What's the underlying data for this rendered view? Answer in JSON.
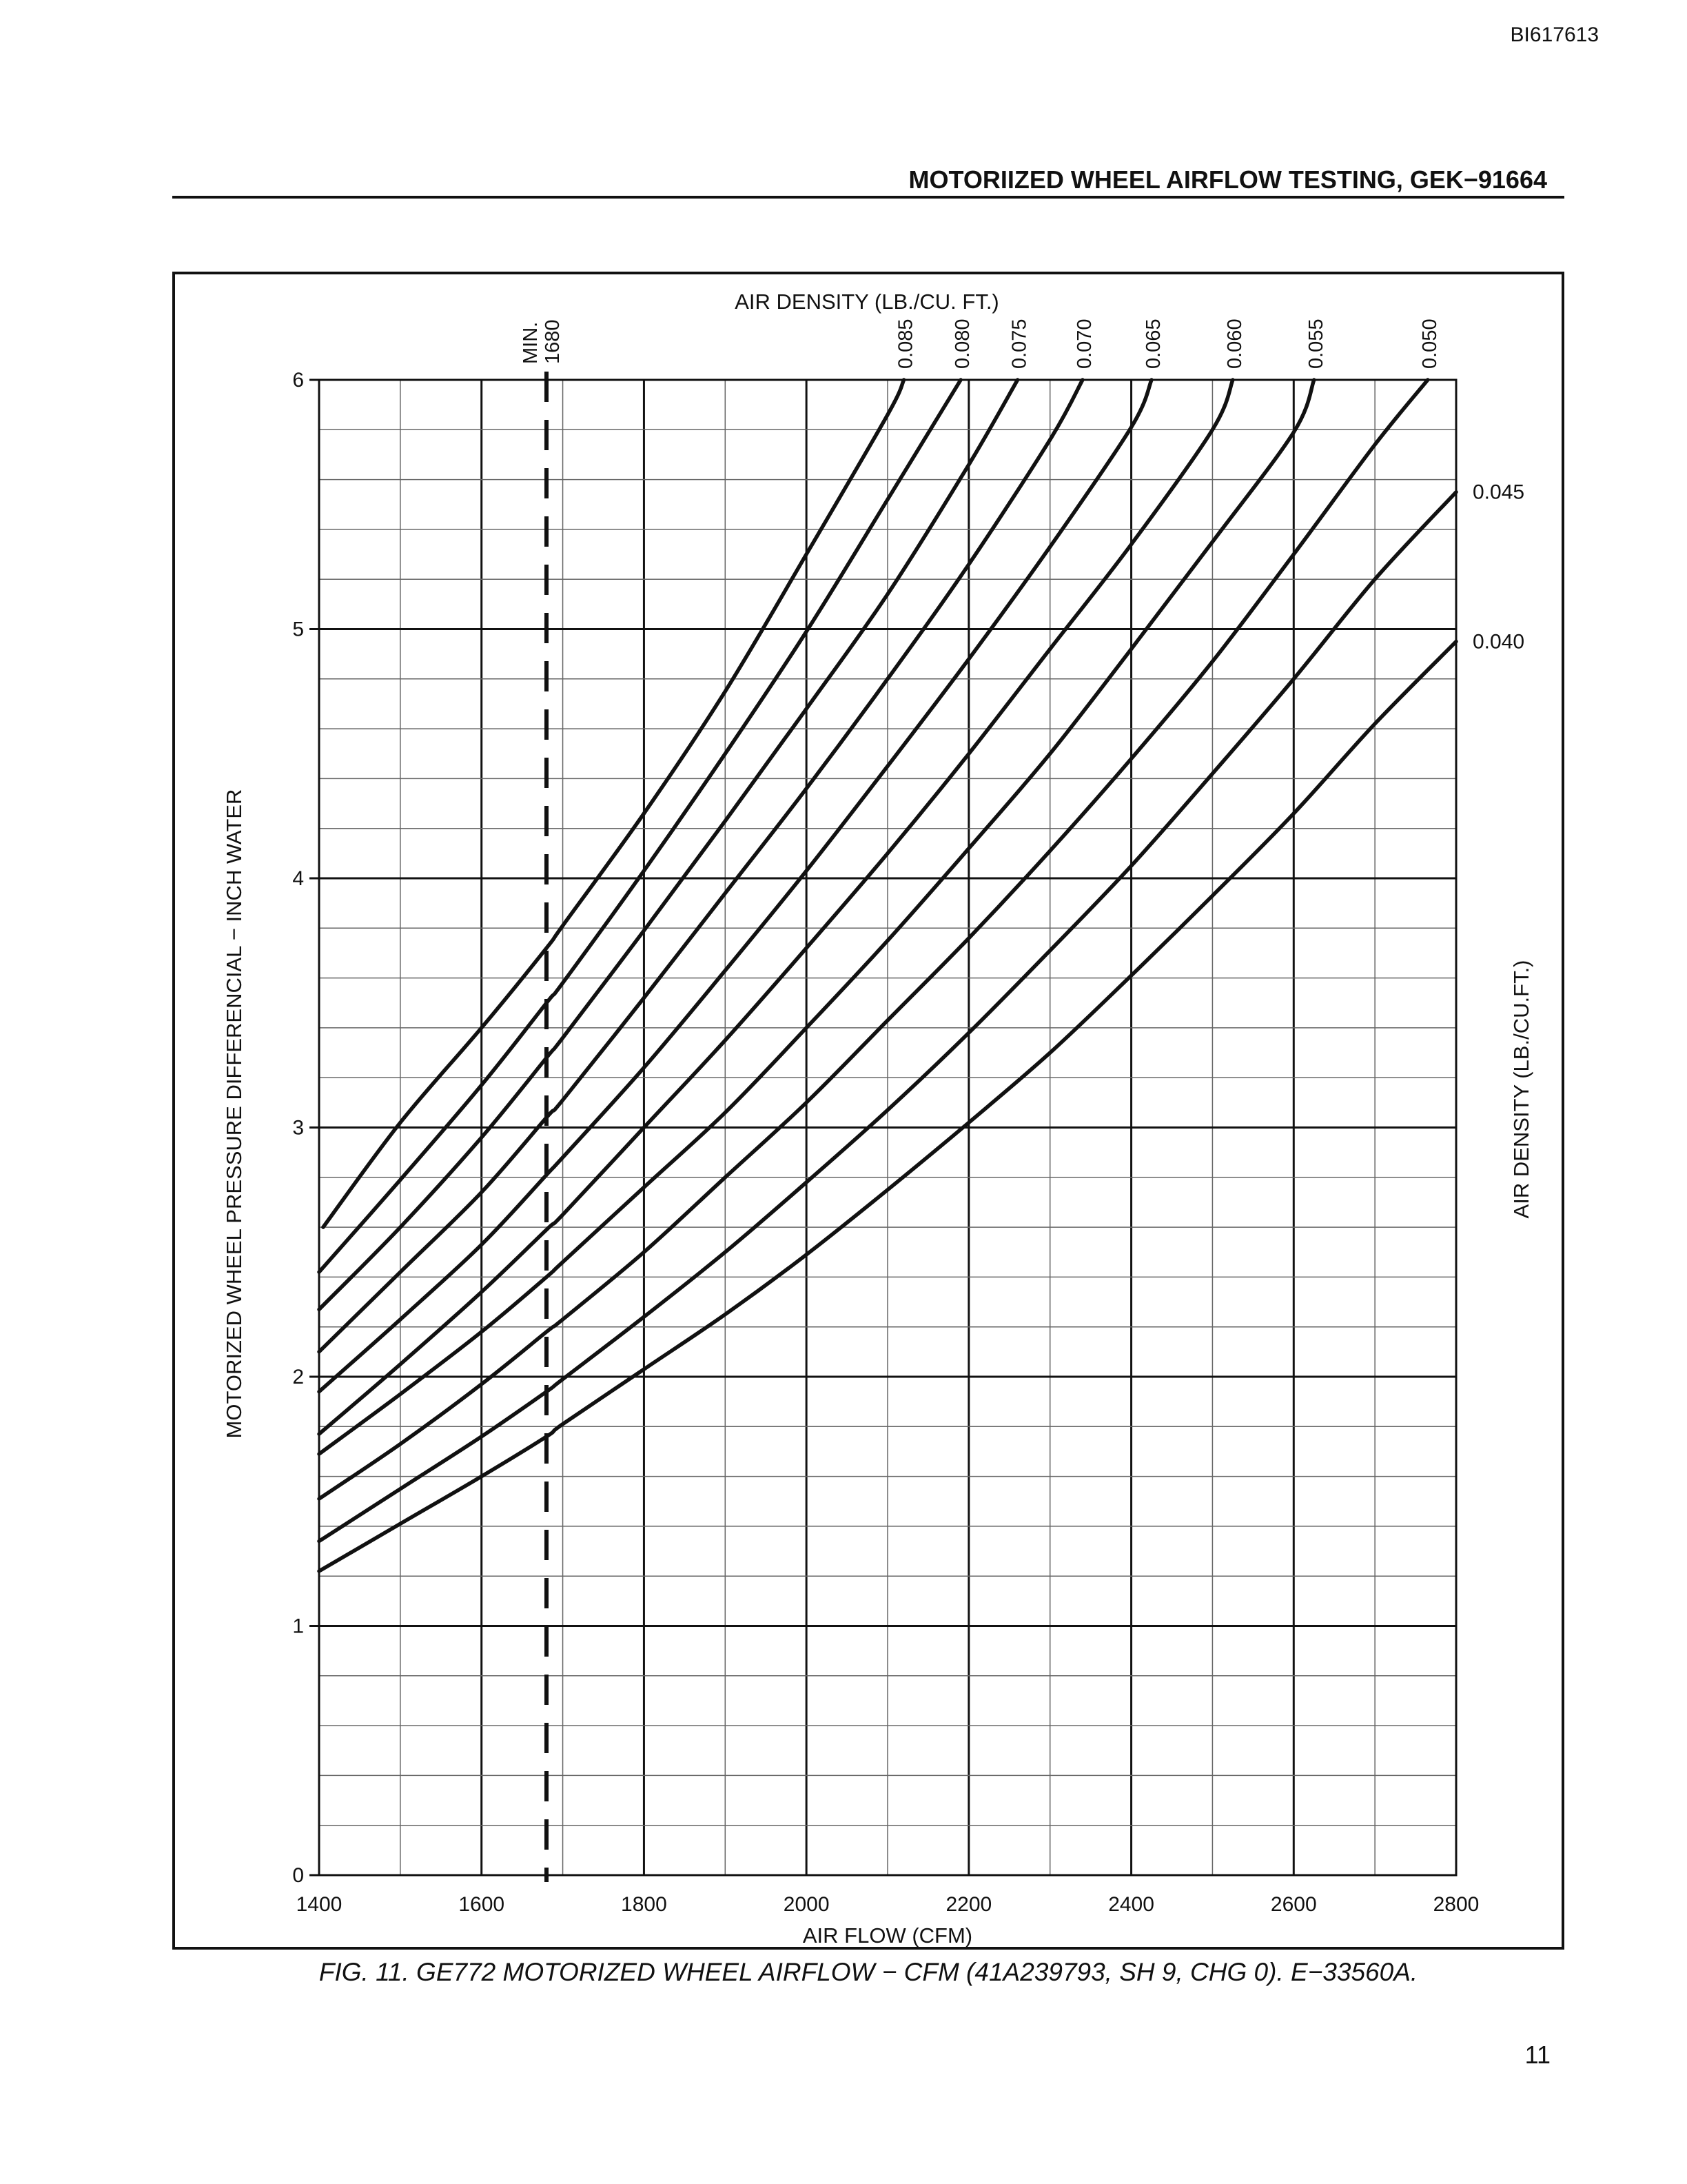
{
  "page": {
    "doc_id": "BI617613",
    "header_title": "MOTORIIZED WHEEL AIRFLOW TESTING, GEK−91664",
    "caption": "FIG. 11. GE772 MOTORIZED WHEEL AIRFLOW − CFM (41A239793, SH 9, CHG 0). E−33560A.",
    "page_number": "11"
  },
  "chart_data": {
    "type": "line",
    "top_label": "AIR DENSITY (LB./CU. FT.)",
    "xlabel": "AIR FLOW (CFM)",
    "ylabel": "MOTORIZED WHEEL PRESSURE DIFFERENCIAL − INCH WATER",
    "right_label": "AIR DENSITY (LB./CU.FT.)",
    "xlim": [
      1400,
      2800
    ],
    "ylim": [
      0,
      6
    ],
    "x_ticks": [
      "1400",
      "1600",
      "1800",
      "2000",
      "2200",
      "2400",
      "2600",
      "2800"
    ],
    "y_ticks": [
      "0",
      "1",
      "2",
      "3",
      "4",
      "5",
      "6"
    ],
    "grid": true,
    "reference_line": {
      "label_line1": "MIN.",
      "label_line2": "1680",
      "x": 1680,
      "style": "dashed"
    },
    "series": [
      {
        "name": "0.085",
        "label_position": "top",
        "x": [
          1405,
          1500,
          1600,
          1680,
          1700,
          1800,
          1900,
          2000,
          2100,
          2120
        ],
        "y": [
          2.6,
          3.02,
          3.4,
          3.72,
          3.81,
          4.26,
          4.75,
          5.3,
          5.86,
          6.0
        ]
      },
      {
        "name": "0.080",
        "label_position": "top",
        "x": [
          1400,
          1500,
          1600,
          1680,
          1700,
          1800,
          1900,
          2000,
          2100,
          2190
        ],
        "y": [
          2.42,
          2.79,
          3.17,
          3.5,
          3.58,
          4.03,
          4.5,
          4.99,
          5.52,
          6.0
        ]
      },
      {
        "name": "0.075",
        "label_position": "top",
        "x": [
          1400,
          1500,
          1600,
          1680,
          1700,
          1800,
          1900,
          2000,
          2100,
          2200,
          2260
        ],
        "y": [
          2.27,
          2.6,
          2.96,
          3.28,
          3.36,
          3.79,
          4.23,
          4.68,
          5.14,
          5.66,
          6.0
        ]
      },
      {
        "name": "0.070",
        "label_position": "top",
        "x": [
          1400,
          1500,
          1600,
          1680,
          1700,
          1800,
          1900,
          2000,
          2100,
          2200,
          2300,
          2340
        ],
        "y": [
          2.1,
          2.42,
          2.74,
          3.04,
          3.11,
          3.52,
          3.94,
          4.36,
          4.8,
          5.26,
          5.76,
          6.0
        ]
      },
      {
        "name": "0.065",
        "label_position": "top",
        "x": [
          1400,
          1500,
          1600,
          1680,
          1700,
          1800,
          1900,
          2000,
          2100,
          2200,
          2300,
          2400,
          2425
        ],
        "y": [
          1.94,
          2.23,
          2.53,
          2.81,
          2.88,
          3.24,
          3.63,
          4.03,
          4.45,
          4.88,
          5.33,
          5.81,
          6.0
        ]
      },
      {
        "name": "0.060",
        "label_position": "top",
        "x": [
          1400,
          1500,
          1600,
          1680,
          1700,
          1800,
          1900,
          2000,
          2100,
          2200,
          2300,
          2400,
          2500,
          2525
        ],
        "y": [
          1.77,
          2.05,
          2.34,
          2.59,
          2.65,
          3.0,
          3.35,
          3.72,
          4.1,
          4.5,
          4.92,
          5.34,
          5.8,
          6.0
        ]
      },
      {
        "name": "0.055",
        "label_position": "top",
        "x": [
          1400,
          1500,
          1600,
          1680,
          1700,
          1800,
          1900,
          2000,
          2100,
          2200,
          2300,
          2400,
          2500,
          2600,
          2625
        ],
        "y": [
          1.69,
          1.93,
          2.18,
          2.4,
          2.46,
          2.76,
          3.06,
          3.4,
          3.75,
          4.12,
          4.5,
          4.92,
          5.35,
          5.79,
          6.0
        ]
      },
      {
        "name": "0.050",
        "label_position": "top",
        "x": [
          1400,
          1500,
          1600,
          1680,
          1700,
          1800,
          1900,
          2000,
          2100,
          2200,
          2300,
          2400,
          2500,
          2600,
          2700,
          2765
        ],
        "y": [
          1.51,
          1.73,
          1.97,
          2.18,
          2.23,
          2.5,
          2.8,
          3.1,
          3.43,
          3.76,
          4.11,
          4.48,
          4.87,
          5.3,
          5.74,
          6.0
        ]
      },
      {
        "name": "0.045",
        "label_position": "right",
        "x": [
          1400,
          1500,
          1600,
          1680,
          1700,
          1800,
          1900,
          2000,
          2100,
          2200,
          2300,
          2400,
          2500,
          2600,
          2700,
          2800
        ],
        "y": [
          1.34,
          1.55,
          1.76,
          1.94,
          1.99,
          2.24,
          2.5,
          2.78,
          3.07,
          3.38,
          3.71,
          4.05,
          4.42,
          4.8,
          5.2,
          5.55
        ]
      },
      {
        "name": "0.040",
        "label_position": "right",
        "x": [
          1400,
          1500,
          1600,
          1680,
          1700,
          1800,
          1900,
          2000,
          2100,
          2200,
          2300,
          2400,
          2500,
          2600,
          2700,
          2800
        ],
        "y": [
          1.22,
          1.41,
          1.6,
          1.76,
          1.81,
          2.03,
          2.25,
          2.49,
          2.75,
          3.02,
          3.3,
          3.61,
          3.93,
          4.26,
          4.62,
          4.95
        ]
      }
    ]
  }
}
